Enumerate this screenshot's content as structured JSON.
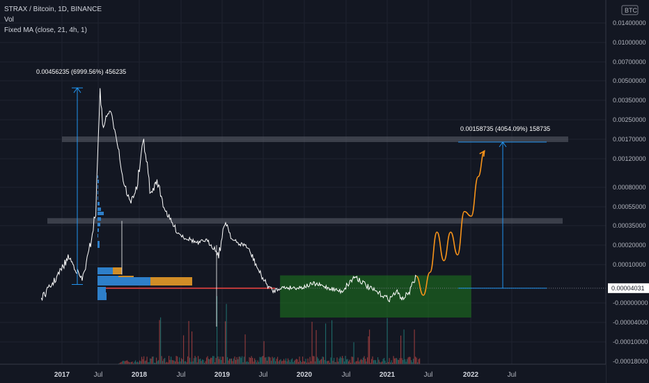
{
  "legend": {
    "symbol": "STRAX / Bitcoin, 1D, BINANCE",
    "volume": "Vol",
    "ma": "Fixed MA (close, 21, 4h, 1)"
  },
  "currency_label": "BTC",
  "current_price_label": "0.00004031",
  "chart_data": {
    "type": "line",
    "title": "",
    "y_ticks": [
      "0.01400000",
      "0.01000000",
      "0.00700000",
      "0.00500000",
      "0.00350000",
      "0.00250000",
      "0.00170000",
      "0.00120000",
      "0.00080000",
      "0.00055000",
      "0.00035000",
      "0.00020000",
      "0.00010000",
      "-0.00000000",
      "-0.00004000",
      "-0.00010000",
      "-0.00018000"
    ],
    "x_ticks": [
      {
        "label": "2017",
        "year": true
      },
      {
        "label": "Jul",
        "year": false
      },
      {
        "label": "2018",
        "year": true
      },
      {
        "label": "Jul",
        "year": false
      },
      {
        "label": "2019",
        "year": true
      },
      {
        "label": "Jul",
        "year": false
      },
      {
        "label": "2020",
        "year": true
      },
      {
        "label": "Jul",
        "year": false
      },
      {
        "label": "2021",
        "year": true
      },
      {
        "label": "Jul",
        "year": false
      },
      {
        "label": "2022",
        "year": true
      },
      {
        "label": "Jul",
        "year": false
      }
    ],
    "price_series": {
      "dates": [
        "2016-10",
        "2016-12",
        "2017-02",
        "2017-03",
        "2017-04",
        "2017-05",
        "2017-06",
        "2017-06-20",
        "2017-07",
        "2017-08",
        "2017-09",
        "2017-10",
        "2017-11",
        "2017-12",
        "2018-01",
        "2018-02",
        "2018-03",
        "2018-04",
        "2018-05",
        "2018-06",
        "2018-07",
        "2018-08",
        "2018-09",
        "2018-10",
        "2018-11",
        "2018-12",
        "2019-01",
        "2019-02",
        "2019-03",
        "2019-04",
        "2019-05",
        "2019-06",
        "2019-07",
        "2019-08",
        "2019-09",
        "2019-10",
        "2019-12",
        "2020-02",
        "2020-04",
        "2020-06",
        "2020-08",
        "2020-10",
        "2020-12",
        "2021-01",
        "2021-02",
        "2021-03",
        "2021-04",
        "2021-05"
      ],
      "values": [
        1e-05,
        6e-05,
        0.00014,
        9e-05,
        6e-05,
        0.00016,
        0.0005,
        0.00456,
        0.0022,
        0.003,
        0.0019,
        0.0009,
        0.0006,
        0.0008,
        0.0017,
        0.0007,
        0.0009,
        0.00055,
        0.0004,
        0.0003,
        0.00026,
        0.00024,
        0.00021,
        0.00024,
        0.0002,
        0.00015,
        0.0004,
        0.00024,
        0.00021,
        0.0002,
        0.00014,
        8e-05,
        5e-05,
        3e-05,
        4e-05,
        4e-05,
        4e-05,
        5e-05,
        4e-05,
        3e-05,
        7e-05,
        4e-05,
        2e-05,
        1e-05,
        3e-05,
        1e-05,
        3e-05,
        7e-05
      ]
    },
    "projection": {
      "dates": [
        "2021-05",
        "2021-06",
        "2021-07",
        "2021-08",
        "2021-09",
        "2021-10",
        "2021-11",
        "2021-12",
        "2022-01",
        "2022-02",
        "2022-03"
      ],
      "values": [
        7e-05,
        2e-05,
        8e-05,
        0.0003,
        0.00012,
        0.0003,
        0.00015,
        0.0005,
        0.00045,
        0.00095,
        0.0014
      ]
    },
    "resistance_levels": [
      0.0017,
      0.0004
    ],
    "support_zone": {
      "from": "2019-09",
      "to": "2022-01",
      "low": -1e-05,
      "high": 7e-05
    },
    "measure_up": {
      "text": "0.00456235 (6999.56%) 456235",
      "from": 7e-05,
      "to": 0.00456
    },
    "measure_target": {
      "text": "0.00158735 (4054.09%) 158735",
      "from": 4e-05,
      "to": 0.0017
    },
    "current_price": 4.031e-05,
    "volume_profile": [
      {
        "blue": 1,
        "orange": 0
      },
      {
        "blue": 2,
        "orange": 0
      },
      {
        "blue": 1,
        "orange": 0
      },
      {
        "blue": 1,
        "orange": 0
      },
      {
        "blue": 1,
        "orange": 0
      },
      {
        "blue": 3,
        "orange": 0
      },
      {
        "blue": 5,
        "orange": 0
      },
      {
        "blue": 9,
        "orange": 0
      },
      {
        "blue": 5,
        "orange": 0
      },
      {
        "blue": 4,
        "orange": 0
      },
      {
        "blue": 2,
        "orange": 0
      },
      {
        "blue": 1,
        "orange": 0
      },
      {
        "blue": 3,
        "orange": 0
      },
      {
        "blue": 22,
        "orange": 13
      },
      {
        "blue": 30,
        "orange": 22
      },
      {
        "blue": 76,
        "orange": 60
      },
      {
        "blue": 12,
        "orange": 0
      },
      {
        "blue": 13,
        "orange": 0
      }
    ],
    "x_label": "",
    "y_label": "",
    "grid": true
  }
}
